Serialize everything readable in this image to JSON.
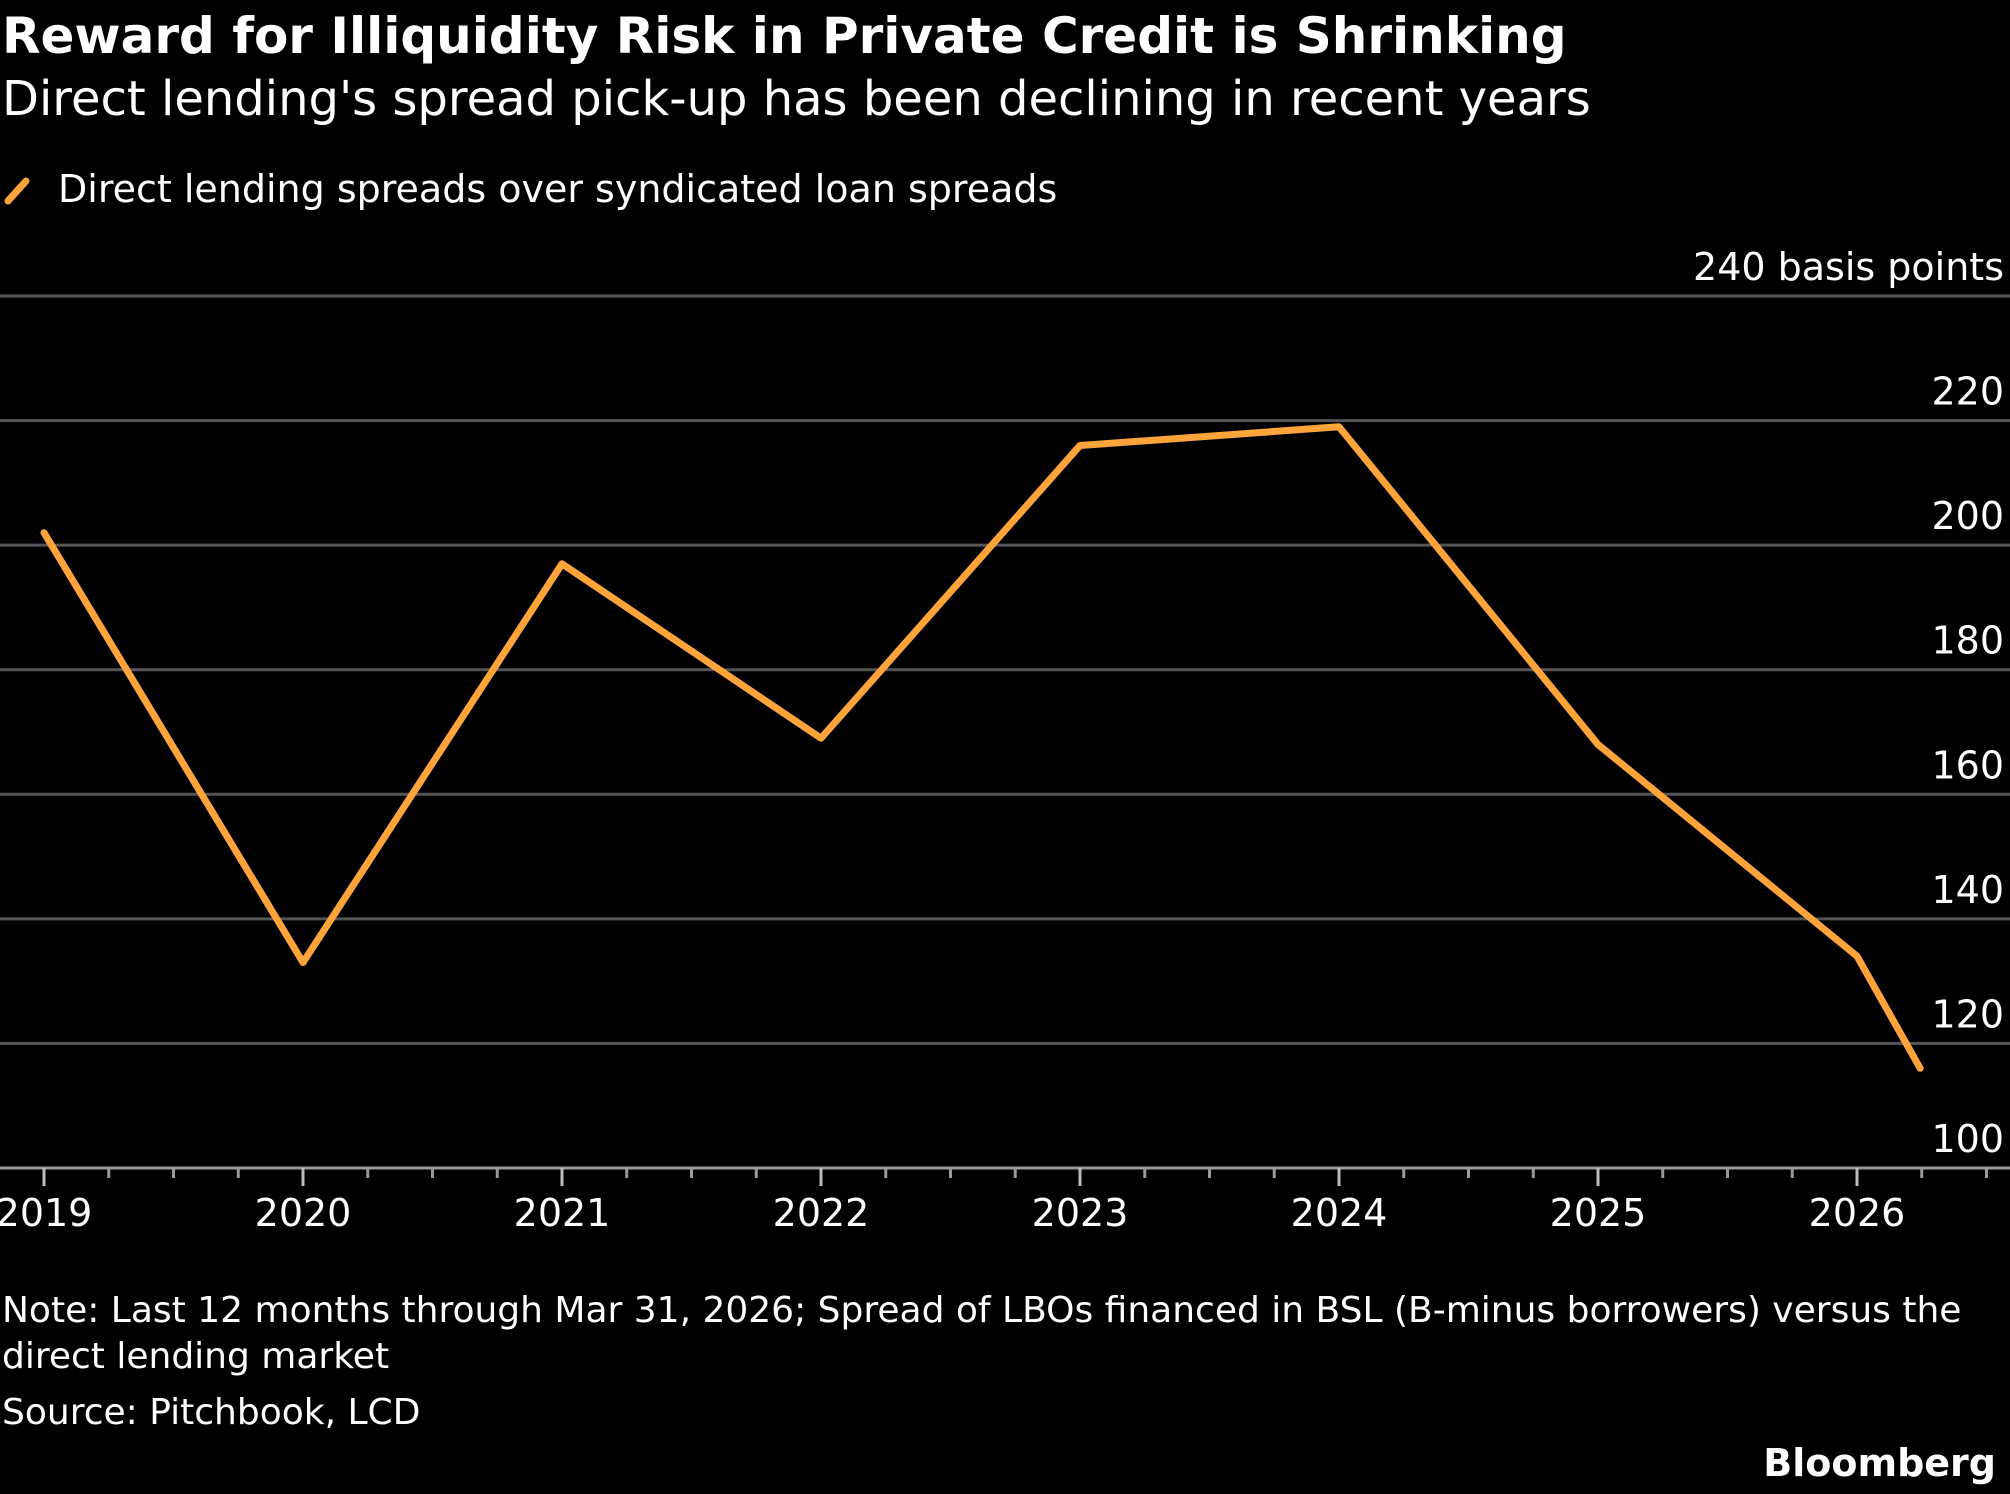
{
  "title": "Reward for Illiquidity Risk in Private Credit is Shrinking",
  "subtitle": "Direct lending's spread pick-up has been declining in recent years",
  "note": "Note: Last 12 months through Mar 31, 2026; Spread of LBOs financed in BSL (B-minus borrowers) versus the direct lending market",
  "source": "Source: Pitchbook, LCD",
  "brand": "Bloomberg",
  "colors": {
    "background": "#000000",
    "line": "#ffa43a",
    "grid": "#555555",
    "text": "#ffffff"
  },
  "chart_data": {
    "type": "line",
    "title": "Reward for Illiquidity Risk in Private Credit is Shrinking",
    "subtitle": "Direct lending's spread pick-up has been declining in recent years",
    "ylabel": "basis points",
    "ylim": [
      100,
      240
    ],
    "yticks": [
      {
        "value": 100,
        "label": "100"
      },
      {
        "value": 120,
        "label": "120"
      },
      {
        "value": 140,
        "label": "140"
      },
      {
        "value": 160,
        "label": "160"
      },
      {
        "value": 180,
        "label": "180"
      },
      {
        "value": 200,
        "label": "200"
      },
      {
        "value": 220,
        "label": "220"
      },
      {
        "value": 240,
        "label": "240 basis points"
      }
    ],
    "xlim": [
      "2019-01-01",
      "2026-06-01"
    ],
    "xticks": [
      "2019",
      "2020",
      "2021",
      "2022",
      "2023",
      "2024",
      "2025",
      "2026"
    ],
    "grid": true,
    "legend": "top-left",
    "series": [
      {
        "name": "Direct lending spreads over syndicated loan spreads",
        "points": [
          {
            "x": "2019-01-01",
            "y": 202
          },
          {
            "x": "2020-01-01",
            "y": 133
          },
          {
            "x": "2021-01-01",
            "y": 197
          },
          {
            "x": "2022-01-01",
            "y": 169
          },
          {
            "x": "2023-01-01",
            "y": 216
          },
          {
            "x": "2024-01-01",
            "y": 219
          },
          {
            "x": "2025-01-01",
            "y": 168
          },
          {
            "x": "2026-01-01",
            "y": 134
          },
          {
            "x": "2026-03-31",
            "y": 116
          }
        ]
      }
    ]
  }
}
